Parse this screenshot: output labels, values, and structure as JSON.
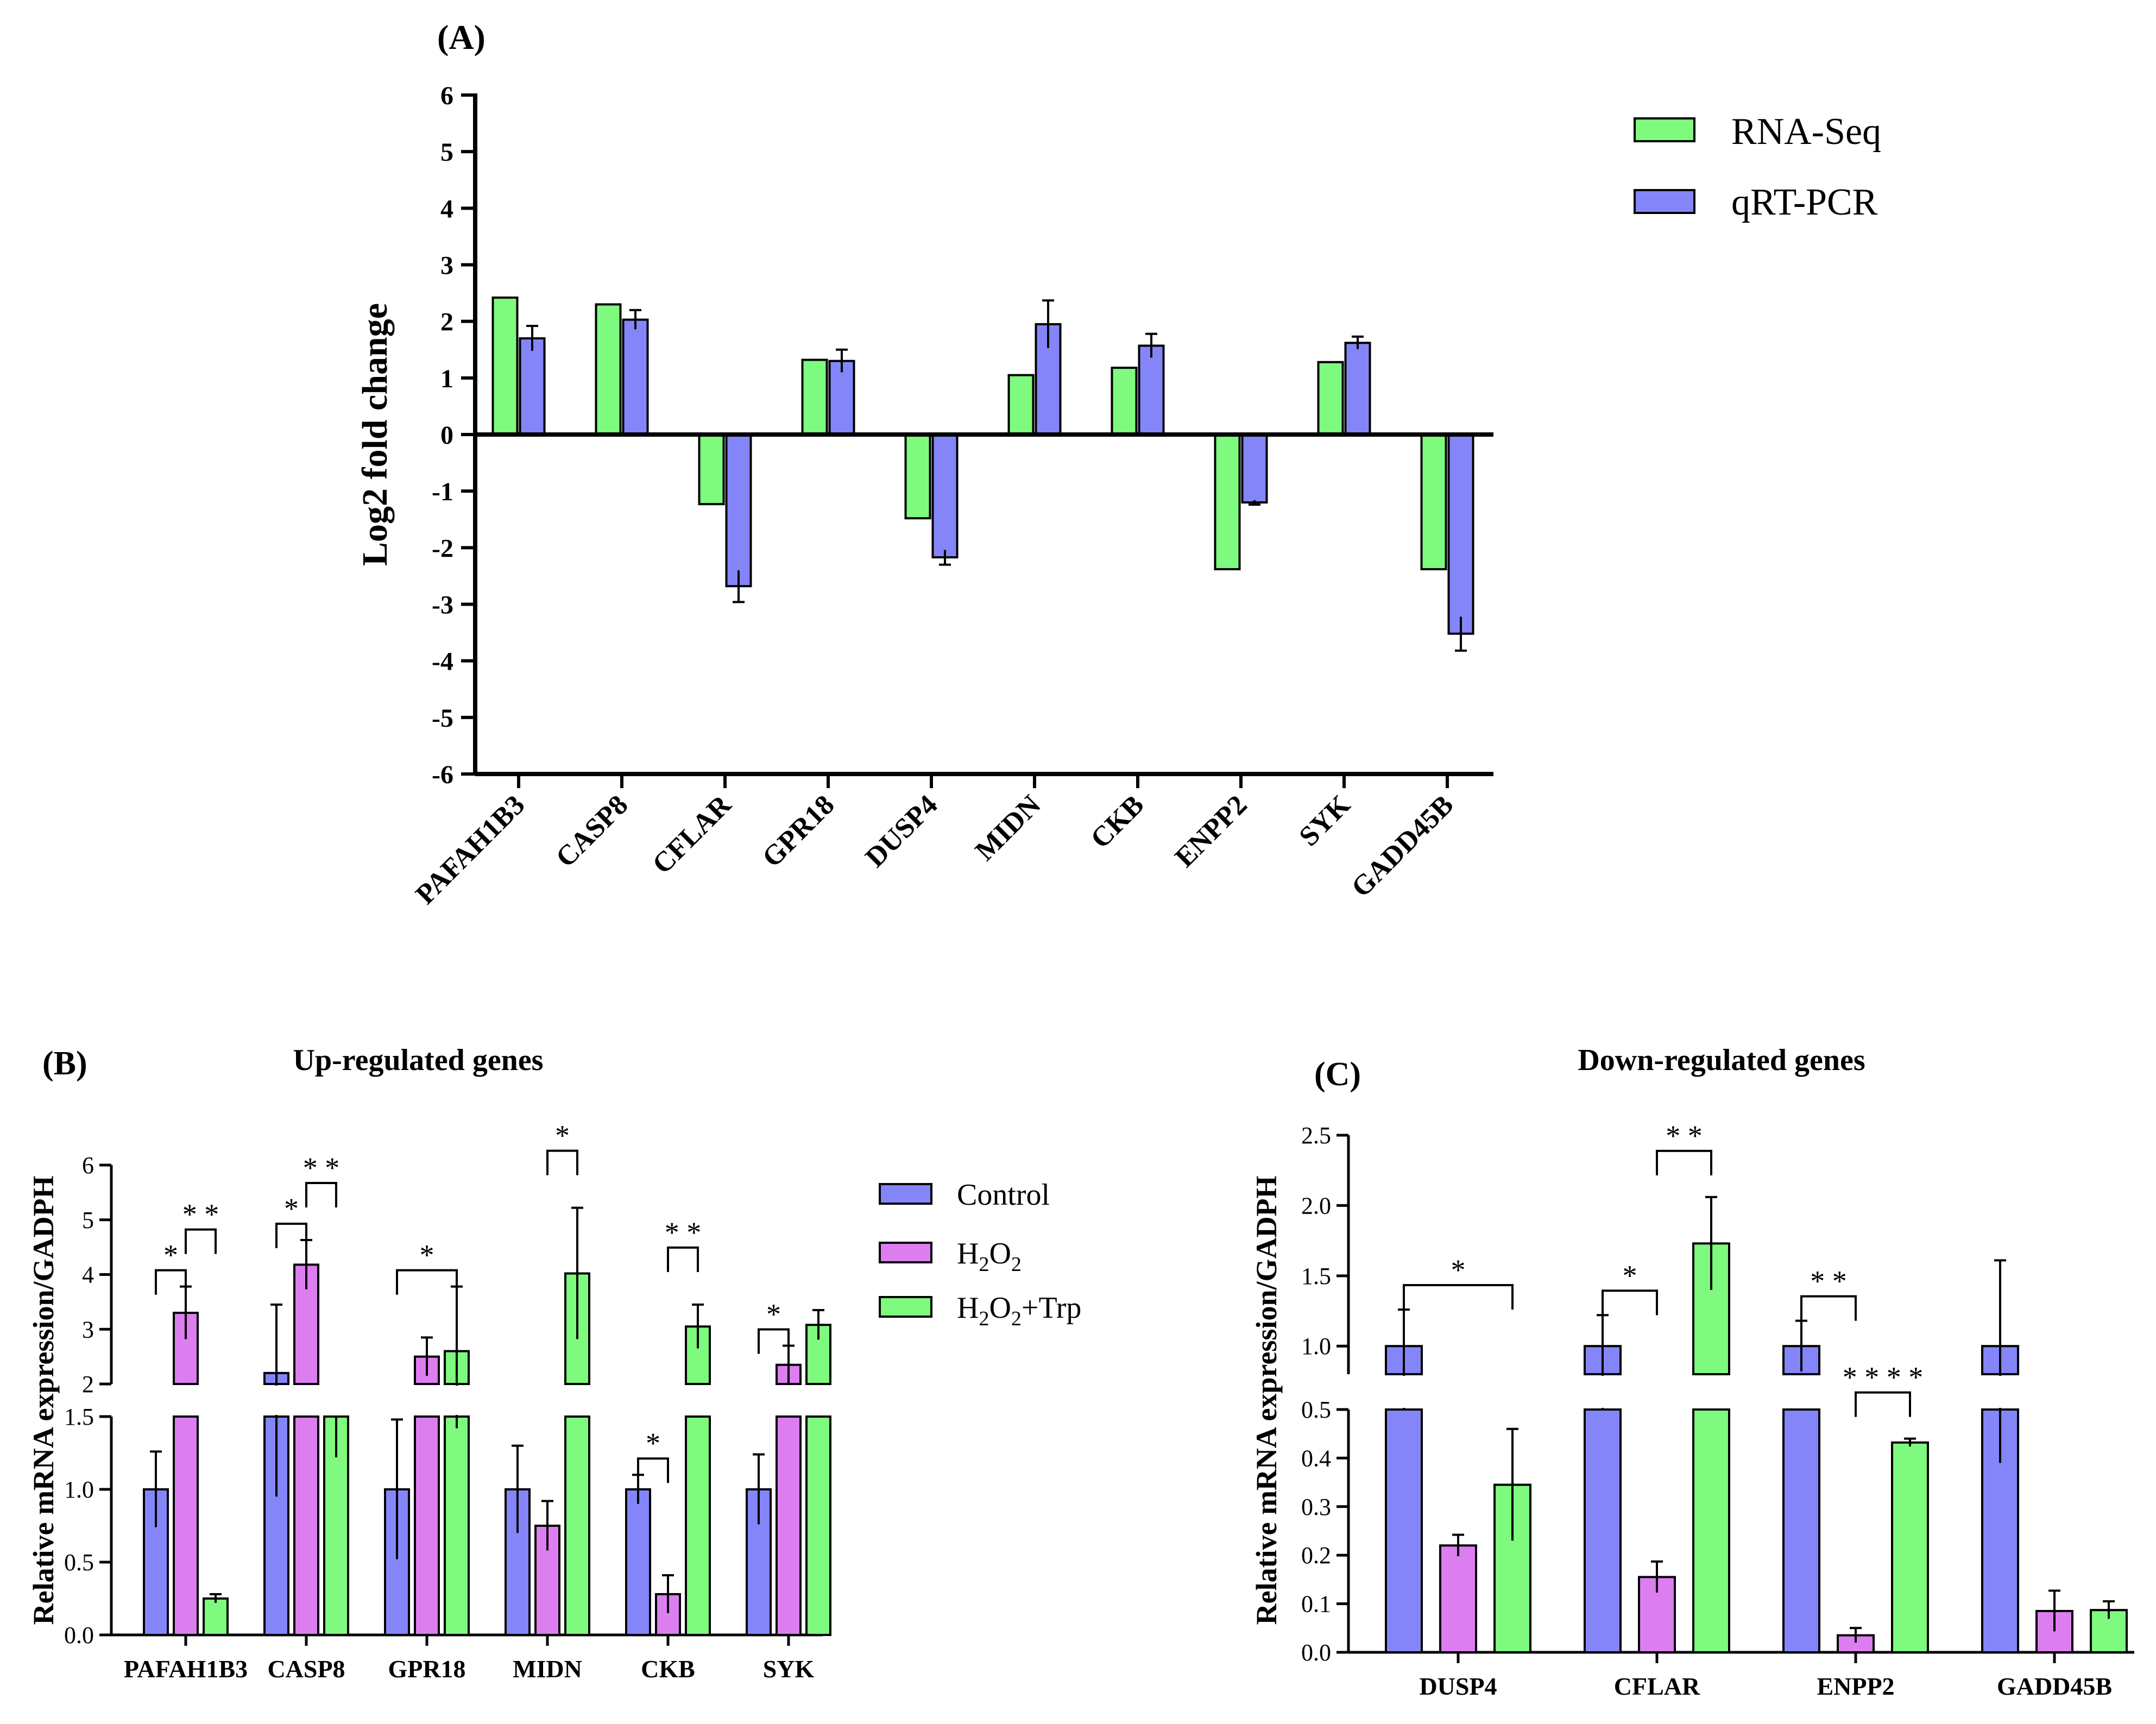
{
  "colors": {
    "green": "#7EFA7E",
    "blue": "#8585FA",
    "purple": "#DC7EF0",
    "axis": "#000000"
  },
  "chart_data": [
    {
      "id": "A",
      "panel_label": "(A)",
      "type": "bar",
      "title": "",
      "ylabel": "Log2 fold change",
      "ylim": [
        -6,
        6
      ],
      "yticks": [
        "6",
        "5",
        "4",
        "3",
        "2",
        "1",
        "0",
        "-1",
        "-2",
        "-3",
        "-4",
        "-5",
        "-6"
      ],
      "categories": [
        "PAFAH1B3",
        "CASP8",
        "CFLAR",
        "GPR18",
        "DUSP4",
        "MIDN",
        "CKB",
        "ENPP2",
        "SYK",
        "GADD45B"
      ],
      "series": [
        {
          "name": "RNA-Seq",
          "color": "#7EFA7E",
          "values": [
            2.42,
            2.3,
            -1.23,
            1.32,
            -1.48,
            1.05,
            1.18,
            -2.38,
            1.28,
            -2.38
          ],
          "errors": [
            0,
            0,
            0,
            0,
            0,
            0,
            0,
            0,
            0,
            0
          ]
        },
        {
          "name": "qRT-PCR",
          "color": "#8585FA",
          "values": [
            1.7,
            2.03,
            -2.68,
            1.3,
            -2.17,
            1.95,
            1.57,
            -1.2,
            1.62,
            -3.52
          ],
          "errors": [
            0.22,
            0.17,
            0.28,
            0.2,
            0.13,
            0.42,
            0.21,
            0.04,
            0.11,
            0.3
          ]
        }
      ],
      "legend": {
        "position": "top-right",
        "entries": [
          "RNA-Seq",
          "qRT-PCR"
        ]
      }
    },
    {
      "id": "B",
      "panel_label": "(B)",
      "type": "bar",
      "title": "Up-regulated genes",
      "ylabel": "Relative mRNA expression/GADPH",
      "y_axis_broken": true,
      "ylim_lower": [
        0,
        1.5
      ],
      "ylim_upper": [
        2,
        6
      ],
      "yticks_lower": [
        "0.0",
        "0.5",
        "1.0",
        "1.5"
      ],
      "yticks_upper": [
        "2",
        "3",
        "4",
        "5",
        "6"
      ],
      "categories": [
        "PAFAH1B3",
        "CASP8",
        "GPR18",
        "MIDN",
        "CKB",
        "SYK"
      ],
      "series": [
        {
          "name": "Control",
          "color": "#8585FA",
          "values": [
            1.0,
            2.2,
            1.0,
            1.0,
            1.0,
            1.0
          ],
          "errors": [
            0.26,
            1.25,
            0.48,
            0.3,
            0.1,
            0.24
          ]
        },
        {
          "name": "H2O2",
          "color": "#DC7EF0",
          "values": [
            3.3,
            4.18,
            2.5,
            0.75,
            0.28,
            2.35
          ],
          "errors": [
            0.48,
            0.45,
            0.35,
            0.17,
            0.13,
            0.35
          ]
        },
        {
          "name": "H2O2+Trp",
          "color": "#7EFA7E",
          "values": [
            0.25,
            1.5,
            2.6,
            4.02,
            3.05,
            3.08
          ],
          "errors": [
            0.03,
            0.28,
            1.18,
            1.2,
            0.4,
            0.27
          ]
        }
      ],
      "annotations": [
        {
          "category": "PAFAH1B3",
          "from": 0,
          "to": 1,
          "text": "*"
        },
        {
          "category": "PAFAH1B3",
          "from": 1,
          "to": 2,
          "text": "* *"
        },
        {
          "category": "CASP8",
          "from": 0,
          "to": 1,
          "text": "*"
        },
        {
          "category": "CASP8",
          "from": 1,
          "to": 2,
          "text": "* *"
        },
        {
          "category": "GPR18",
          "from": 0,
          "to": 2,
          "text": "*"
        },
        {
          "category": "MIDN",
          "from": 1,
          "to": 2,
          "text": "*"
        },
        {
          "category": "CKB",
          "from": 0,
          "to": 1,
          "text": "*"
        },
        {
          "category": "CKB",
          "from": 1,
          "to": 2,
          "text": "* *"
        },
        {
          "category": "SYK",
          "from": 0,
          "to": 1,
          "text": "*"
        }
      ],
      "legend": {
        "position": "right",
        "entries": [
          "Control",
          "H2O2",
          "H2O2+Trp"
        ]
      }
    },
    {
      "id": "C",
      "panel_label": "(C)",
      "type": "bar",
      "title": "Down-regulated genes",
      "ylabel": "Relative mRNA expression/GADPH",
      "y_axis_broken": true,
      "ylim_lower": [
        0,
        0.5
      ],
      "ylim_upper": [
        0.8,
        2.5
      ],
      "yticks_lower": [
        "0.0",
        "0.1",
        "0.2",
        "0.3",
        "0.4",
        "0.5"
      ],
      "yticks_upper": [
        "1.0",
        "1.5",
        "2.0",
        "2.5"
      ],
      "categories": [
        "DUSP4",
        "CFLAR",
        "ENPP2",
        "GADD45B"
      ],
      "series": [
        {
          "name": "Control",
          "color": "#8585FA",
          "values": [
            1.0,
            1.0,
            1.0,
            1.0
          ],
          "errors": [
            0.26,
            0.22,
            0.18,
            0.61
          ]
        },
        {
          "name": "H2O2",
          "color": "#DC7EF0",
          "values": [
            0.22,
            0.155,
            0.035,
            0.085
          ],
          "errors": [
            0.022,
            0.032,
            0.015,
            0.042
          ]
        },
        {
          "name": "H2O2+Trp",
          "color": "#7EFA7E",
          "values": [
            0.345,
            1.73,
            0.432,
            0.087
          ],
          "errors": [
            0.115,
            0.33,
            0.008,
            0.018
          ]
        }
      ],
      "annotations": [
        {
          "category": "DUSP4",
          "from": 0,
          "to": 2,
          "text": "*"
        },
        {
          "category": "CFLAR",
          "from": 0,
          "to": 1,
          "text": "*"
        },
        {
          "category": "CFLAR",
          "from": 1,
          "to": 2,
          "text": "* *"
        },
        {
          "category": "ENPP2",
          "from": 0,
          "to": 1,
          "text": "* *"
        },
        {
          "category": "ENPP2",
          "from": 1,
          "to": 2,
          "text": "* * * *"
        }
      ]
    }
  ]
}
